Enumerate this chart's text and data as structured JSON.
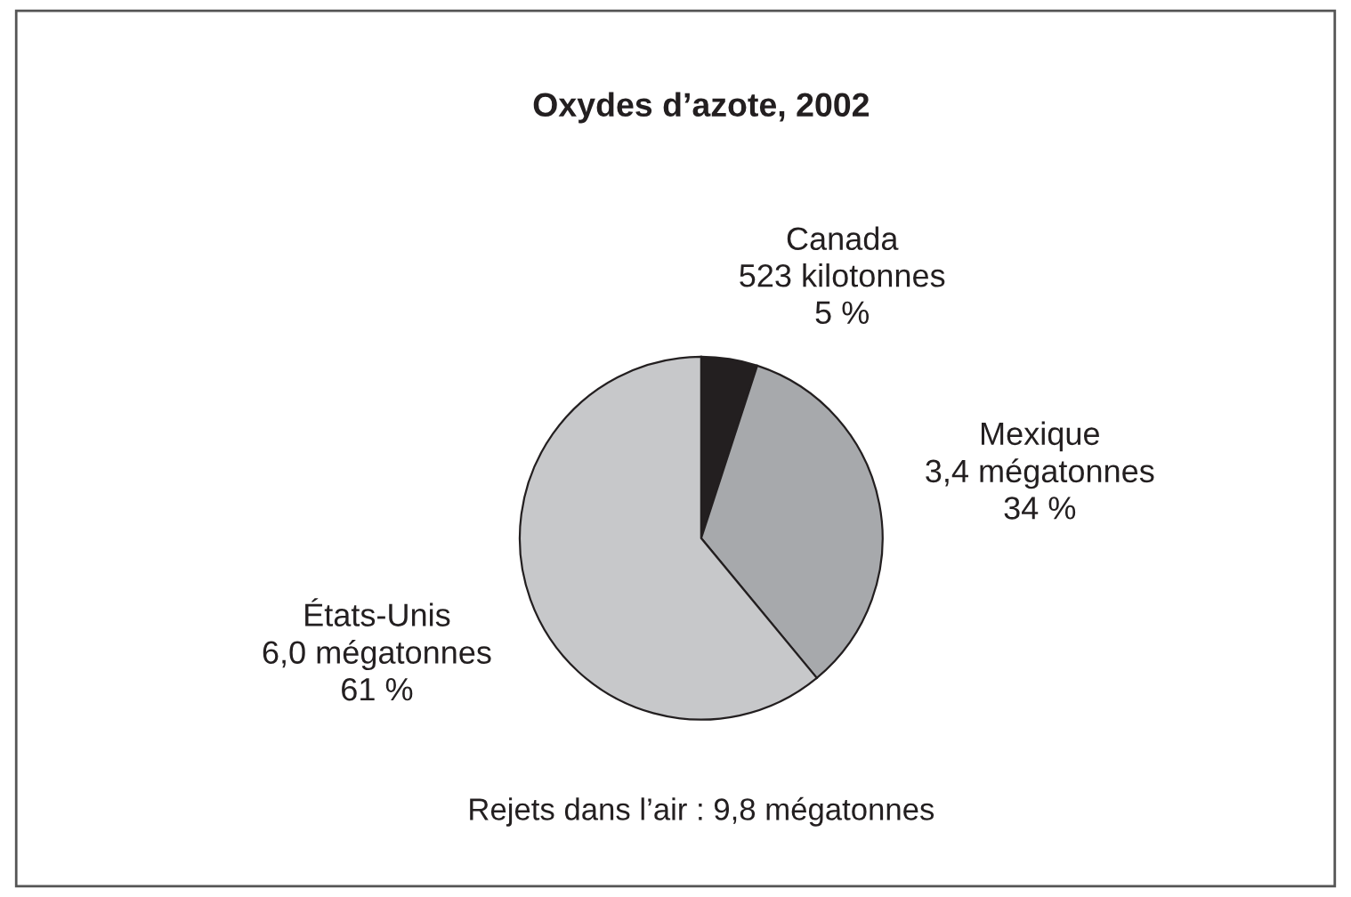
{
  "chart_data": {
    "type": "pie",
    "title": "Oxydes d’azote, 2002",
    "categories": [
      "Canada",
      "Mexique",
      "États-Unis"
    ],
    "values": [
      5,
      34,
      61
    ],
    "value_labels": [
      "523 kilotonnes\n5 %",
      "3,4 mégatonnes\n34 %",
      "6,0 mégatonnes\n61 %"
    ],
    "colors": [
      "#231f20",
      "#a7a9ac",
      "#c7c8ca"
    ],
    "annotations": [
      "Rejets dans l’air : 9,8 mégatonnes"
    ],
    "legend": false
  }
}
